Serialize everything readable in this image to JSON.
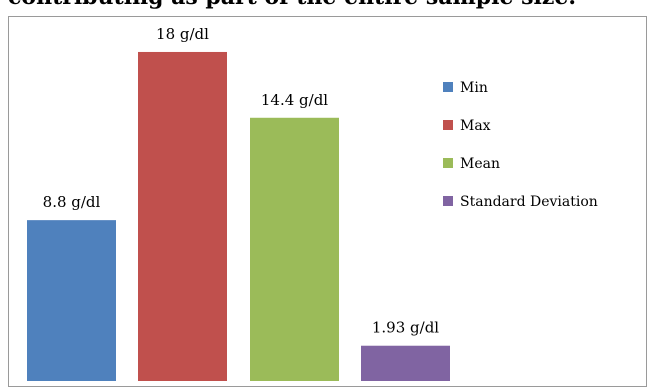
{
  "caption_fragment": "contributing as part of the entire sample size.",
  "chart_data": {
    "type": "bar",
    "categories": [
      "Min",
      "Max",
      "Mean",
      "Standard Deviation"
    ],
    "values": [
      8.8,
      18,
      14.4,
      1.93
    ],
    "data_labels": [
      "8.8 g/dl",
      "18 g/dl",
      "14.4 g/dl",
      "1.93 g/dl"
    ],
    "colors": [
      "#4f81bd",
      "#c0504d",
      "#9bbb59",
      "#8064a2"
    ],
    "ylim": [
      0,
      18.6
    ],
    "grid": false,
    "legend_position": "right"
  }
}
